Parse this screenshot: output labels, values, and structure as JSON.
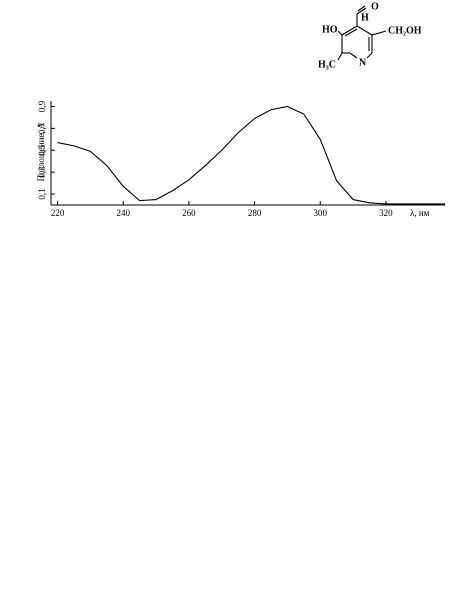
{
  "chart_data": {
    "type": "line",
    "x_label": "λ, нм",
    "y_label": "Поглощение, А",
    "x": [
      220,
      225,
      230,
      235,
      240,
      245,
      250,
      255,
      260,
      265,
      270,
      275,
      280,
      285,
      290,
      295,
      300,
      305,
      310,
      315,
      320,
      330,
      338
    ],
    "series": [
      {
        "color": "#000000",
        "values": [
          0.57,
          0.54,
          0.49,
          0.36,
          0.17,
          0.04,
          0.05,
          0.13,
          0.23,
          0.36,
          0.5,
          0.66,
          0.79,
          0.87,
          0.9,
          0.83,
          0.6,
          0.22,
          0.05,
          0.02,
          0.01,
          0.01,
          0.01
        ]
      }
    ],
    "xlim": [
      218,
      338
    ],
    "xticks": [
      220,
      240,
      260,
      280,
      300,
      320
    ],
    "ylim": [
      0,
      0.95
    ],
    "yticks": [
      {
        "value": 0.1,
        "label": "0,1"
      },
      {
        "value": 0.3,
        "label": "0,3"
      },
      {
        "value": 0.5,
        "label": "0,5"
      },
      {
        "value": 0.7,
        "label": "0,7"
      },
      {
        "value": 0.9,
        "label": "0,9"
      }
    ],
    "grid": false,
    "structure_labels": [
      "O",
      "H",
      "HO",
      "CH₂OH",
      "H₃C",
      "N"
    ]
  }
}
